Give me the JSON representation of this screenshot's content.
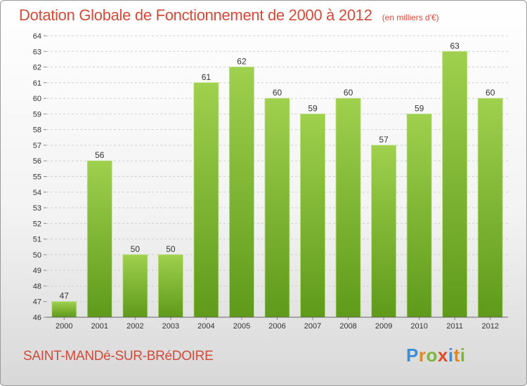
{
  "header": {
    "title": "Dotation Globale de Fonctionnement de 2000 à 2012",
    "unit": "(en milliers d'€)"
  },
  "footer": {
    "commune": "SAINT-MANDé-SUR-BRéDOIRE",
    "logo_letters": [
      "P",
      "r",
      "o",
      "x",
      "i",
      "t",
      "i"
    ]
  },
  "colors": {
    "title": "#d14a3a",
    "bar_top": "#9fd04e",
    "bar_bottom": "#5f9a1a",
    "grid": "#cfcfcf",
    "axis_text": "#333333"
  },
  "chart_data": {
    "type": "bar",
    "title": "Dotation Globale de Fonctionnement de 2000 à 2012",
    "subtitle": "(en milliers d'€)",
    "xlabel": "",
    "ylabel": "",
    "categories": [
      "2000",
      "2001",
      "2002",
      "2003",
      "2004",
      "2005",
      "2006",
      "2007",
      "2008",
      "2009",
      "2010",
      "2011",
      "2012"
    ],
    "values": [
      47,
      56,
      50,
      50,
      61,
      62,
      60,
      59,
      60,
      57,
      59,
      63,
      60
    ],
    "ylim": [
      46,
      64
    ],
    "yticks": [
      46,
      47,
      48,
      49,
      50,
      51,
      52,
      53,
      54,
      55,
      56,
      57,
      58,
      59,
      60,
      61,
      62,
      63,
      64
    ],
    "grid": true,
    "data_labels": true
  }
}
